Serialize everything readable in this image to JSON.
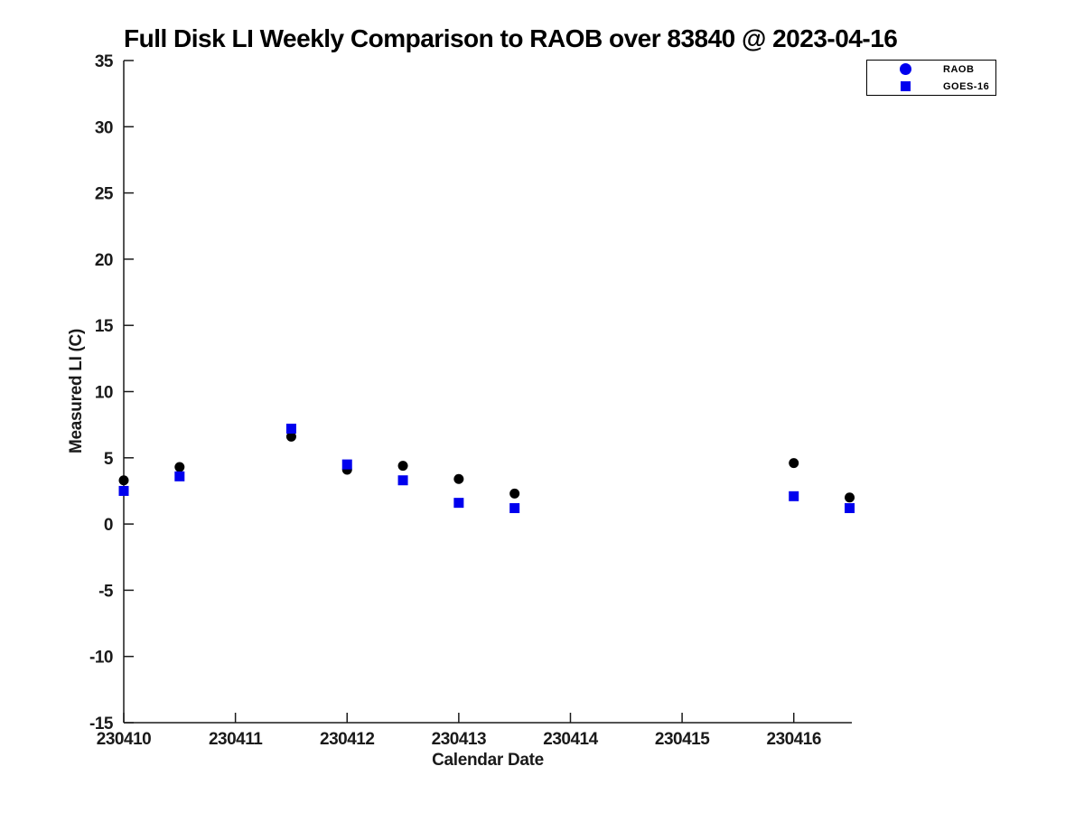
{
  "chart_data": {
    "type": "scatter",
    "title": "Full Disk LI Weekly Comparison to RAOB over 83840 @ 2023-04-16",
    "xlabel": "Calendar Date",
    "ylabel": "Measured LI (C)",
    "xlim": [
      230410,
      230416.52
    ],
    "ylim": [
      -15,
      35
    ],
    "x_ticks": [
      230410,
      230411,
      230412,
      230413,
      230414,
      230415,
      230416
    ],
    "x_tick_labels": [
      "230410",
      "230411",
      "230412",
      "230413",
      "230414",
      "230415",
      "230416"
    ],
    "y_ticks": [
      -15,
      -10,
      -5,
      0,
      5,
      10,
      15,
      20,
      25,
      30,
      35
    ],
    "y_tick_labels": [
      "-15",
      "-10",
      "-5",
      "0",
      "5",
      "10",
      "15",
      "20",
      "25",
      "30",
      "35"
    ],
    "grid": false,
    "legend": {
      "position": "outside-top-right",
      "entries": [
        "RAOB",
        "GOES-16"
      ]
    },
    "axis_color": "#1a1a1a",
    "series": [
      {
        "name": "RAOB",
        "marker": "circle",
        "plot_color": "#000000",
        "legend_color": "#0000ee",
        "x": [
          230410.0,
          230410.5,
          230411.5,
          230412.0,
          230412.5,
          230413.0,
          230413.5,
          230416.0,
          230416.5
        ],
        "y": [
          3.3,
          4.3,
          6.6,
          4.1,
          4.4,
          3.4,
          2.3,
          4.6,
          2.0
        ]
      },
      {
        "name": "GOES-16",
        "marker": "square",
        "plot_color": "#0000ee",
        "legend_color": "#0000ee",
        "x": [
          230410.0,
          230410.5,
          230411.5,
          230412.0,
          230412.5,
          230413.0,
          230413.5,
          230416.0,
          230416.5
        ],
        "y": [
          2.5,
          3.6,
          7.2,
          4.5,
          3.3,
          1.6,
          1.2,
          2.1,
          1.2
        ]
      }
    ]
  }
}
